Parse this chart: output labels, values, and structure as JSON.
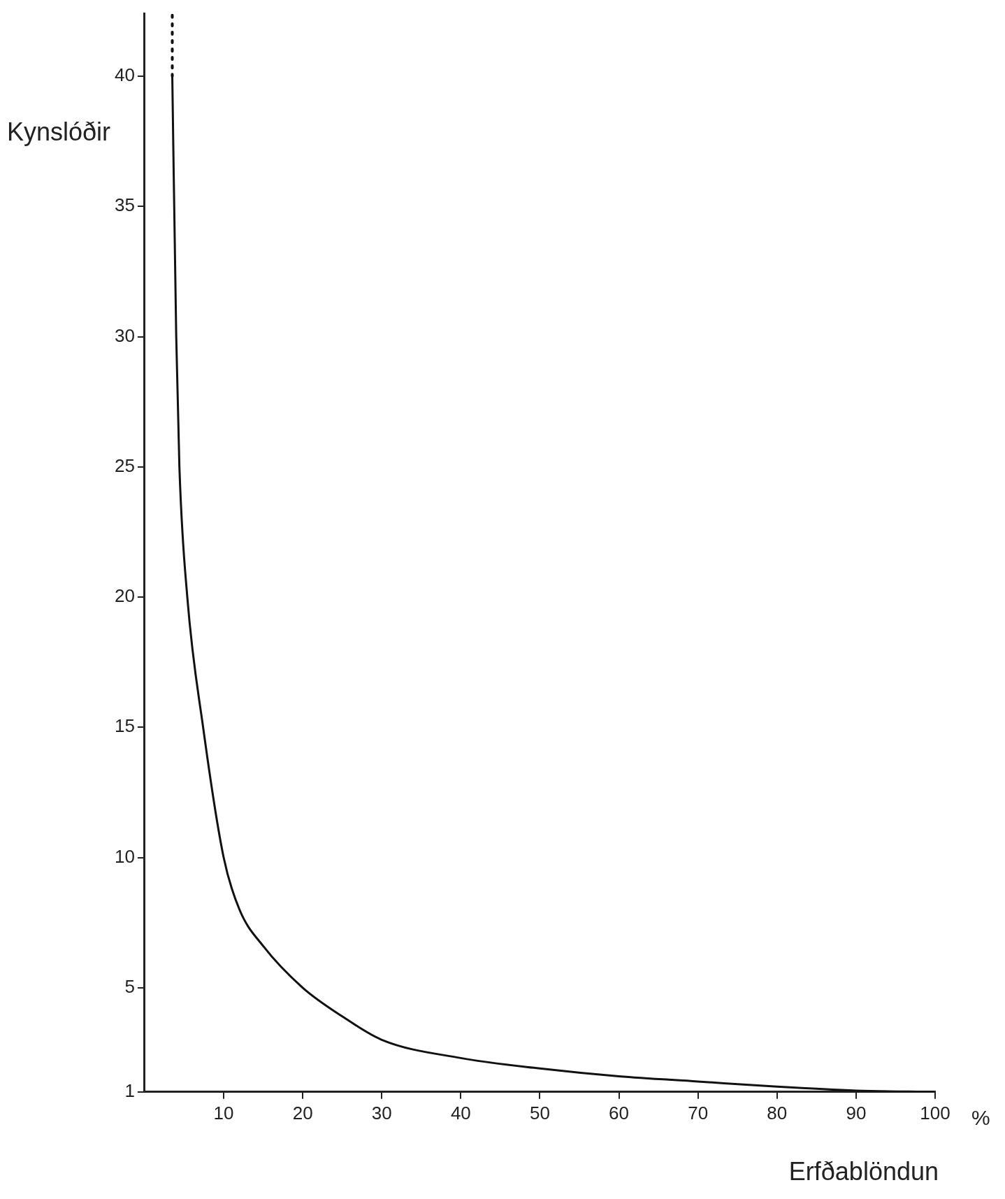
{
  "chart_data": {
    "type": "line",
    "xlabel": "Erfðablöndun",
    "ylabel": "Kynslóðir",
    "annotations": [
      "%"
    ],
    "xlim": [
      0,
      100
    ],
    "xticks": [
      10,
      20,
      30,
      40,
      50,
      60,
      70,
      80,
      90,
      100
    ],
    "ylim": [
      1,
      42.4
    ],
    "yticks": [
      1,
      5,
      10,
      15,
      20,
      25,
      30,
      35,
      40
    ],
    "grid": false,
    "legend": false,
    "marker": "none",
    "line_style": "solid",
    "series": [
      {
        "color": "#111111",
        "x": [
          3.5,
          4.0,
          4.4,
          5.4,
          7.4,
          10,
          12,
          15,
          20,
          25,
          30,
          40,
          50,
          60,
          70,
          80,
          90,
          100
        ],
        "values": [
          40,
          30,
          25,
          20,
          15,
          10,
          8,
          6.6,
          5,
          3.9,
          3.0,
          2.3,
          1.9,
          1.6,
          1.4,
          1.2,
          1.05,
          1
        ]
      },
      {
        "color": "#111111",
        "line_style": "dotted",
        "x": [
          3.5,
          3.5
        ],
        "values": [
          40,
          42.4
        ]
      }
    ]
  }
}
